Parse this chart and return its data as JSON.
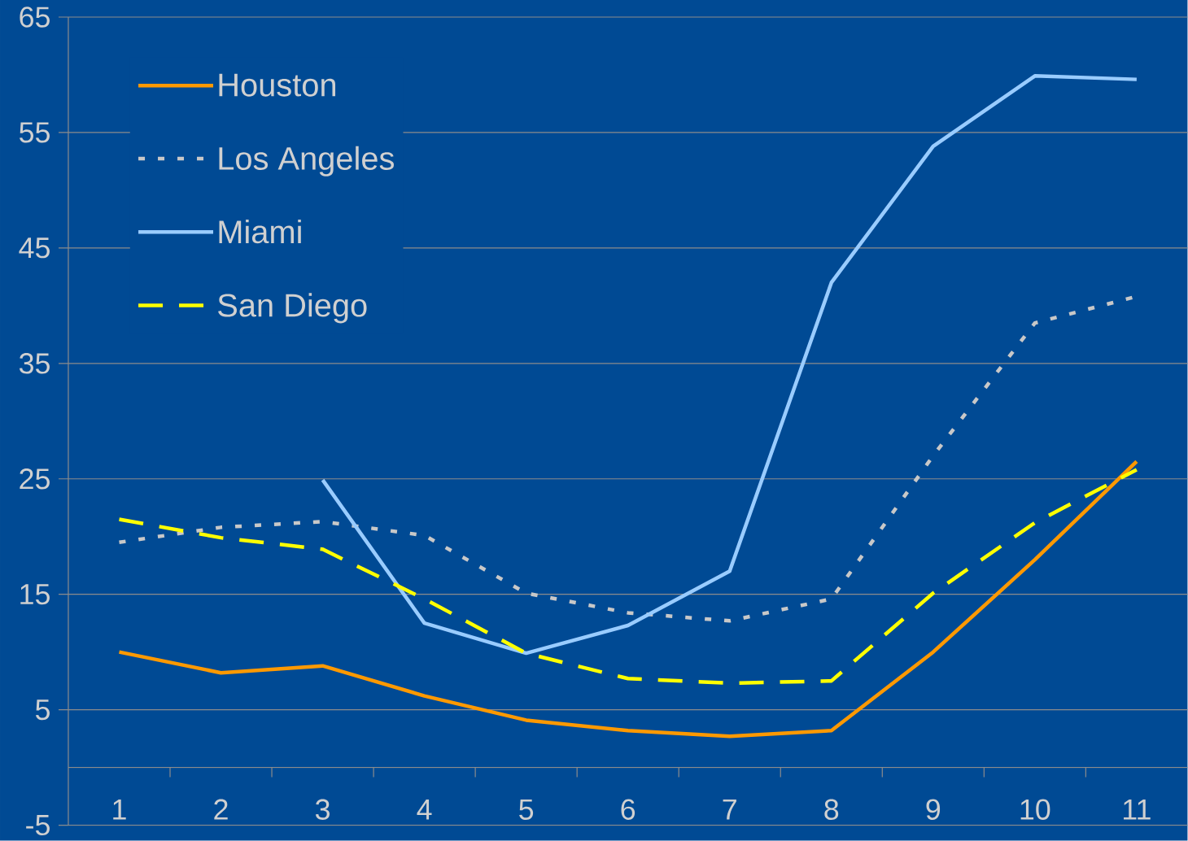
{
  "chart_data": {
    "type": "line",
    "categories": [
      "1",
      "2",
      "3",
      "4",
      "5",
      "6",
      "7",
      "8",
      "9",
      "10",
      "11"
    ],
    "series": [
      {
        "name": "Houston",
        "color": "#ff9900",
        "line_style": "solid",
        "values": [
          10.0,
          8.2,
          8.8,
          6.2,
          4.1,
          3.2,
          2.7,
          3.2,
          10.0,
          18.0,
          26.5
        ]
      },
      {
        "name": "Los Angeles",
        "color": "#c8c8c8",
        "line_style": "dotted",
        "values": [
          19.5,
          20.8,
          21.3,
          20.1,
          15.1,
          13.4,
          12.7,
          14.6,
          27.0,
          38.5,
          40.8
        ]
      },
      {
        "name": "Miami",
        "color": "#99ccff",
        "line_style": "solid",
        "values": [
          null,
          null,
          24.9,
          12.5,
          9.9,
          12.3,
          17.0,
          42.0,
          53.8,
          59.9,
          59.6
        ]
      },
      {
        "name": "San Diego",
        "color": "#ffff00",
        "line_style": "dashed",
        "values": [
          21.5,
          19.9,
          18.9,
          14.6,
          9.9,
          7.7,
          7.3,
          7.5,
          15.1,
          21.2,
          25.8
        ]
      }
    ],
    "ylim": [
      -5,
      65
    ],
    "yticks": [
      -5,
      5,
      15,
      25,
      35,
      45,
      55,
      65
    ],
    "grid": "y",
    "legend": "top left"
  }
}
